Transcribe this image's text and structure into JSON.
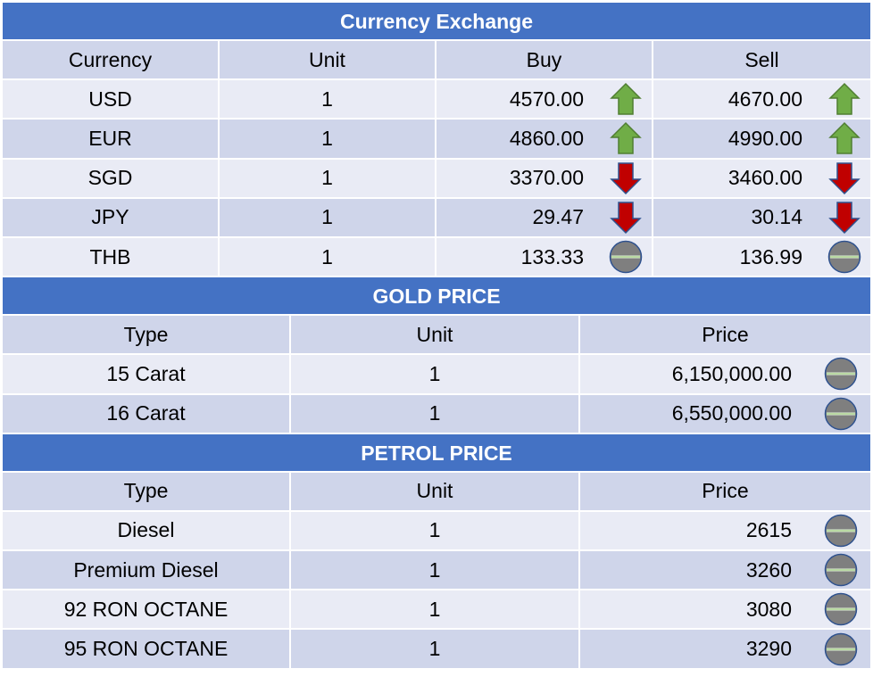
{
  "currency": {
    "title": "Currency Exchange",
    "headers": [
      "Currency",
      "Unit",
      "Buy",
      "Sell"
    ],
    "rows": [
      {
        "currency": "USD",
        "unit": "1",
        "buy": "4570.00",
        "buy_trend": "up-arrow-icon",
        "sell": "4670.00",
        "sell_trend": "up-arrow-icon"
      },
      {
        "currency": "EUR",
        "unit": "1",
        "buy": "4860.00",
        "buy_trend": "up-arrow-icon",
        "sell": "4990.00",
        "sell_trend": "up-arrow-icon"
      },
      {
        "currency": "SGD",
        "unit": "1",
        "buy": "3370.00",
        "buy_trend": "down-arrow-icon",
        "sell": "3460.00",
        "sell_trend": "down-arrow-icon"
      },
      {
        "currency": "JPY",
        "unit": "1",
        "buy": "29.47",
        "buy_trend": "down-arrow-icon",
        "sell": "30.14",
        "sell_trend": "down-arrow-icon"
      },
      {
        "currency": "THB",
        "unit": "1",
        "buy": "133.33",
        "buy_trend": "no-change-icon",
        "sell": "136.99",
        "sell_trend": "no-change-icon"
      }
    ]
  },
  "gold": {
    "title": "GOLD PRICE",
    "headers": [
      "Type",
      "Unit",
      "Price"
    ],
    "rows": [
      {
        "type": "15 Carat",
        "unit": "1",
        "price": "6,150,000.00",
        "trend": "no-change-icon"
      },
      {
        "type": "16 Carat",
        "unit": "1",
        "price": "6,550,000.00",
        "trend": "no-change-icon"
      }
    ]
  },
  "petrol": {
    "title": "PETROL PRICE",
    "headers": [
      "Type",
      "Unit",
      "Price"
    ],
    "rows": [
      {
        "type": "Diesel",
        "unit": "1",
        "price": "2615",
        "trend": "no-change-icon"
      },
      {
        "type": "Premium Diesel",
        "unit": "1",
        "price": "3260",
        "trend": "no-change-icon"
      },
      {
        "type": "92 RON OCTANE",
        "unit": "1",
        "price": "3080",
        "trend": "no-change-icon"
      },
      {
        "type": "95 RON OCTANE",
        "unit": "1",
        "price": "3290",
        "trend": "no-change-icon"
      }
    ]
  },
  "colors": {
    "header_blue": "#4472c4",
    "row_dark": "#cfd5ea",
    "row_light": "#e9ebf5",
    "up_green": "#70ad47",
    "down_red": "#c00000",
    "neutral_gray": "#7f7f7f"
  }
}
